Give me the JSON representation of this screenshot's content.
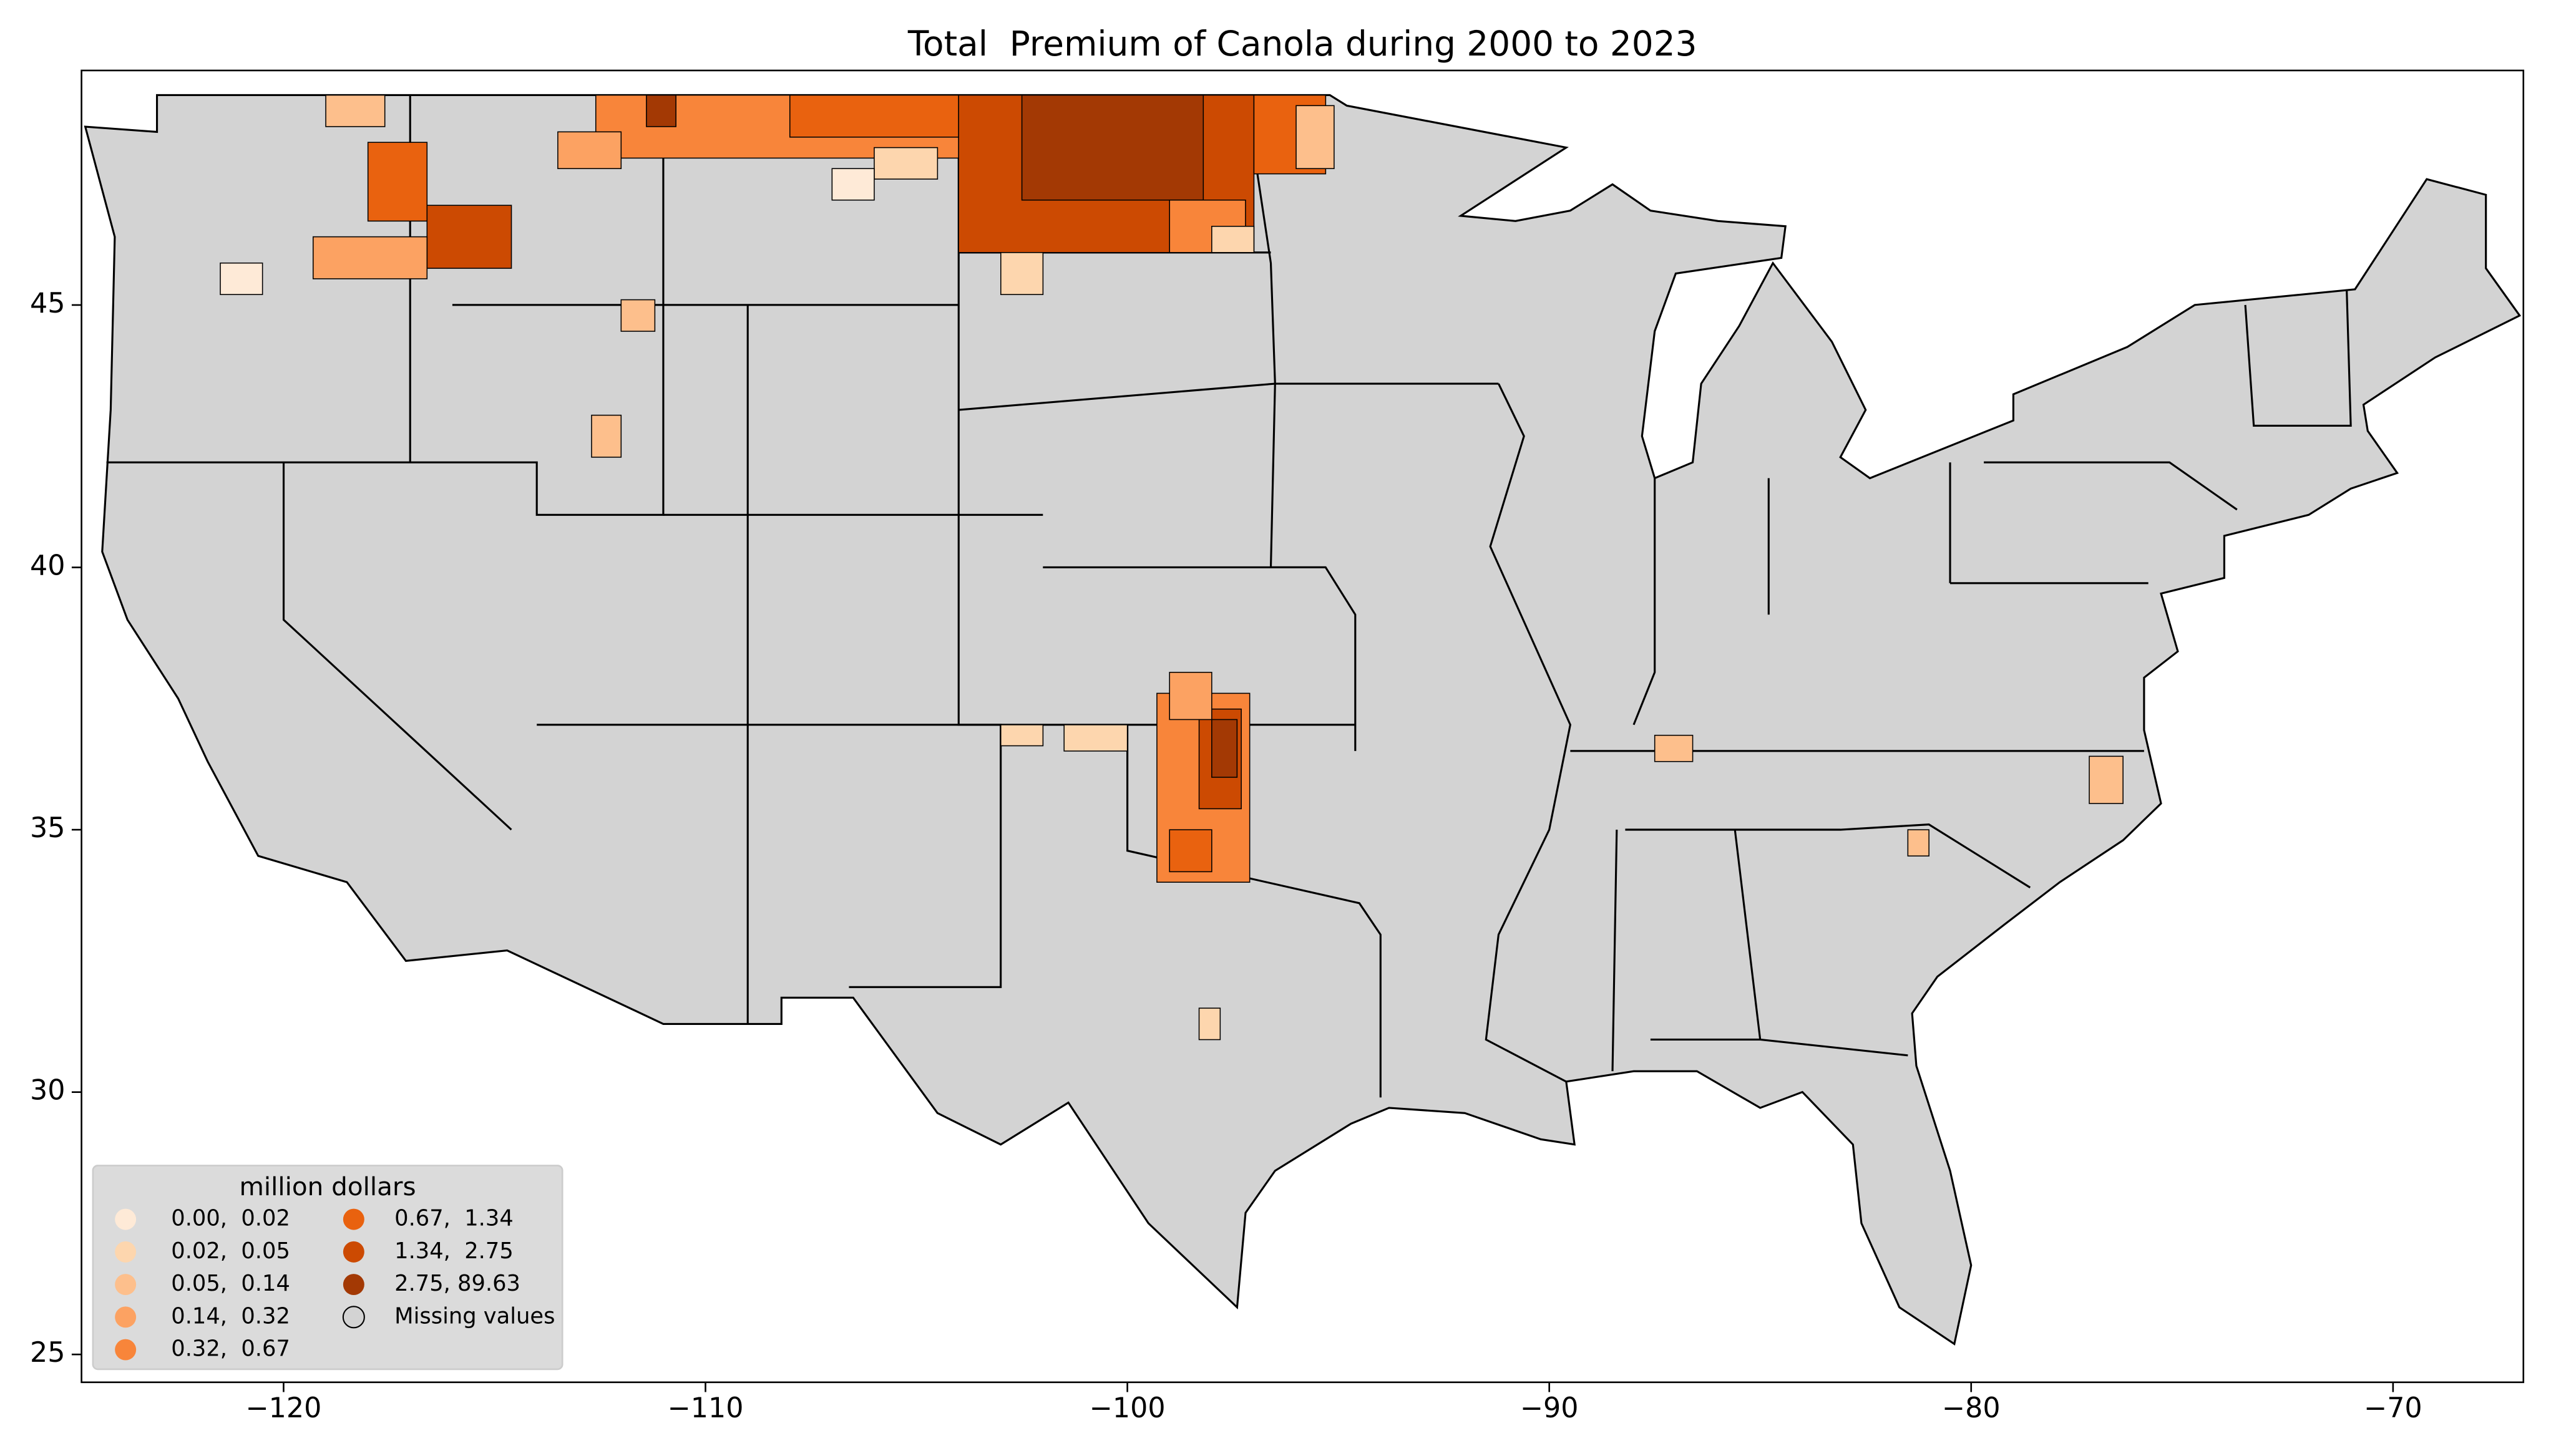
{
  "chart_data": {
    "type": "choropleth",
    "title": "Total  Premium of Canola during 2000 to 2023",
    "xlim": [
      -124.79,
      -66.91
    ],
    "ylim": [
      24.47,
      49.47
    ],
    "xticks": [
      {
        "value": -120,
        "label": "−120"
      },
      {
        "value": -110,
        "label": "−110"
      },
      {
        "value": -100,
        "label": "−100"
      },
      {
        "value": -90,
        "label": "−90"
      },
      {
        "value": -80,
        "label": "−80"
      },
      {
        "value": -70,
        "label": "−70"
      }
    ],
    "yticks": [
      25,
      30,
      35,
      40,
      45
    ],
    "legend": {
      "title": "million dollars",
      "location": "lower left",
      "items": [
        {
          "label": "0.00,  0.02",
          "color": "#feead7"
        },
        {
          "label": "0.02,  0.05",
          "color": "#fdd6ae"
        },
        {
          "label": "0.05,  0.14",
          "color": "#fdbf8c"
        },
        {
          "label": "0.14,  0.32",
          "color": "#fca262"
        },
        {
          "label": "0.32,  0.67",
          "color": "#f8853a"
        },
        {
          "label": "0.67,  1.34",
          "color": "#e9620f"
        },
        {
          "label": "1.34,  2.75",
          "color": "#cc4a02"
        },
        {
          "label": "2.75, 89.63",
          "color": "#a33904"
        },
        {
          "label": "Missing values",
          "color": "#d3d3d3"
        }
      ]
    }
  }
}
